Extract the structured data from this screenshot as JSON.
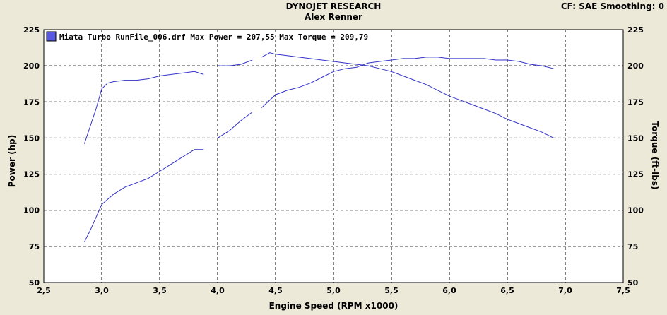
{
  "header": {
    "title": "DYNOJET RESEARCH",
    "subtitle": "Alex Renner",
    "right_info": "CF: SAE  Smoothing: 0"
  },
  "chart_data": {
    "type": "line",
    "xlabel": "Engine Speed (RPM x1000)",
    "ylabel": "Power (hp)",
    "y2label": "Torque (ft-lbs)",
    "xlim": [
      2.5,
      7.5
    ],
    "ylim": [
      50,
      225
    ],
    "y2lim": [
      50,
      225
    ],
    "x_ticks": [
      "2,5",
      "3,0",
      "3,5",
      "4,0",
      "4,5",
      "5,0",
      "5,5",
      "6,0",
      "6,5",
      "7,0",
      "7,5"
    ],
    "y_ticks": [
      "50",
      "75",
      "100",
      "125",
      "150",
      "175",
      "200",
      "225"
    ],
    "y2_ticks": [
      "50",
      "75",
      "100",
      "125",
      "150",
      "175",
      "200",
      "225"
    ],
    "grid": true,
    "legend_position": "top-left",
    "legend_label": "Miata Turbo RunFile_006.drf Max Power = 207,55 Max Torque = 209,79",
    "line_color": "#3232c8",
    "series": [
      {
        "role": "power",
        "segments": [
          [
            [
              2.85,
              78
            ],
            [
              2.9,
              86
            ],
            [
              2.95,
              95
            ],
            [
              3.0,
              104
            ],
            [
              3.1,
              111
            ],
            [
              3.2,
              116
            ],
            [
              3.3,
              119
            ],
            [
              3.4,
              122
            ],
            [
              3.5,
              127
            ],
            [
              3.6,
              132
            ],
            [
              3.7,
              137
            ],
            [
              3.8,
              142
            ],
            [
              3.88,
              142
            ]
          ],
          [
            [
              4.0,
              150
            ],
            [
              4.1,
              155
            ],
            [
              4.2,
              162
            ],
            [
              4.3,
              168
            ]
          ],
          [
            [
              4.38,
              171
            ],
            [
              4.5,
              180
            ],
            [
              4.6,
              183
            ],
            [
              4.7,
              185
            ],
            [
              4.8,
              188
            ],
            [
              4.9,
              192
            ],
            [
              5.0,
              196
            ],
            [
              5.1,
              198
            ],
            [
              5.2,
              199
            ],
            [
              5.3,
              202
            ],
            [
              5.4,
              203
            ],
            [
              5.5,
              204
            ],
            [
              5.6,
              205
            ],
            [
              5.7,
              205
            ],
            [
              5.8,
              206
            ],
            [
              5.9,
              206
            ],
            [
              6.0,
              205
            ],
            [
              6.1,
              205
            ],
            [
              6.2,
              205
            ],
            [
              6.3,
              205
            ],
            [
              6.4,
              204
            ],
            [
              6.5,
              204
            ],
            [
              6.6,
              203
            ],
            [
              6.7,
              201
            ],
            [
              6.8,
              200
            ],
            [
              6.9,
              198
            ]
          ]
        ]
      },
      {
        "role": "torque",
        "segments": [
          [
            [
              2.85,
              146
            ],
            [
              2.9,
              158
            ],
            [
              2.95,
              170
            ],
            [
              3.0,
              184
            ],
            [
              3.05,
              188
            ],
            [
              3.1,
              189
            ],
            [
              3.2,
              190
            ],
            [
              3.3,
              190
            ],
            [
              3.4,
              191
            ],
            [
              3.5,
              193
            ],
            [
              3.6,
              194
            ],
            [
              3.7,
              195
            ],
            [
              3.8,
              196
            ],
            [
              3.88,
              194
            ]
          ],
          [
            [
              4.0,
              200
            ],
            [
              4.1,
              200
            ],
            [
              4.2,
              201
            ],
            [
              4.3,
              204
            ]
          ],
          [
            [
              4.38,
              206
            ],
            [
              4.45,
              209
            ],
            [
              4.5,
              208
            ],
            [
              4.6,
              207
            ],
            [
              4.7,
              206
            ],
            [
              4.8,
              205
            ],
            [
              4.9,
              204
            ],
            [
              5.0,
              203
            ],
            [
              5.1,
              202
            ],
            [
              5.2,
              201
            ],
            [
              5.3,
              200
            ],
            [
              5.4,
              198
            ],
            [
              5.5,
              196
            ],
            [
              5.6,
              193
            ],
            [
              5.7,
              190
            ],
            [
              5.8,
              187
            ],
            [
              5.9,
              183
            ],
            [
              6.0,
              179
            ],
            [
              6.1,
              176
            ],
            [
              6.2,
              173
            ],
            [
              6.3,
              170
            ],
            [
              6.4,
              167
            ],
            [
              6.5,
              163
            ],
            [
              6.6,
              160
            ],
            [
              6.7,
              157
            ],
            [
              6.8,
              154
            ],
            [
              6.9,
              150
            ]
          ]
        ]
      }
    ]
  }
}
